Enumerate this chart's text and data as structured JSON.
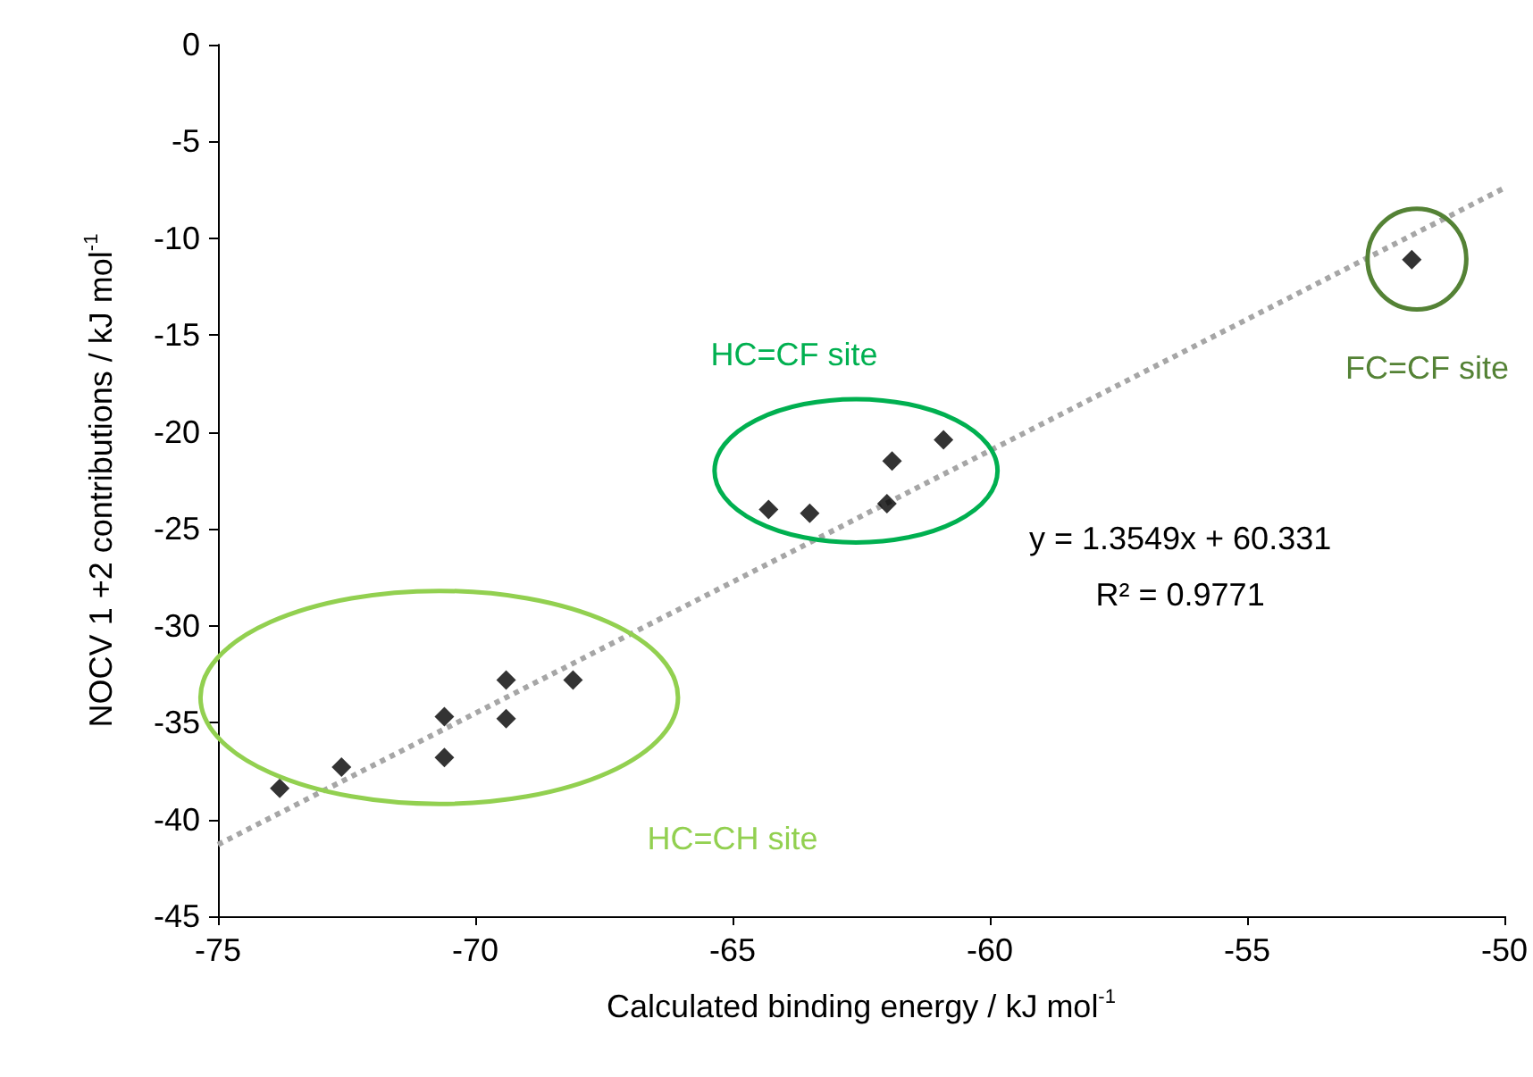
{
  "chart_data": {
    "type": "scatter",
    "xlabel": "Calculated binding energy / kJ mol$^{-1}$",
    "ylabel": "NOCV 1 +2 contributions / kJ mol$^{-1}$",
    "xlim": [
      -75,
      -50
    ],
    "xticks": [
      -75,
      -70,
      -65,
      -60,
      -55,
      -50
    ],
    "ylim": [
      -45,
      0
    ],
    "yticks": [
      -45,
      -40,
      -35,
      -30,
      -25,
      -20,
      -15,
      -10,
      -5,
      0
    ],
    "grid": false,
    "series": [
      {
        "color": "#000000",
        "marker": "diamond",
        "x": [
          -73.8,
          -72.6,
          -70.6,
          -70.6,
          -69.4,
          -69.4,
          -68.1,
          -64.3,
          -63.5,
          -62.0,
          -61.9,
          -60.9,
          -51.8
        ],
        "values": [
          -38.4,
          -37.3,
          -34.7,
          -36.8,
          -32.8,
          -34.8,
          -32.8,
          -24.0,
          -24.2,
          -23.7,
          -21.5,
          -20.4,
          -11.1
        ]
      },
      {
        "type": "line",
        "color": "#a6a6a6",
        "marker": "none",
        "line_style": "dotted",
        "x": [
          -75,
          -50
        ],
        "values": [
          -41.3,
          -7.4
        ]
      }
    ],
    "annotations": [
      "HC=CF site",
      "FC=CF site",
      "HC=CH site",
      "y = 1.3549x + 60.331",
      "R² = 0.9771"
    ]
  }
}
